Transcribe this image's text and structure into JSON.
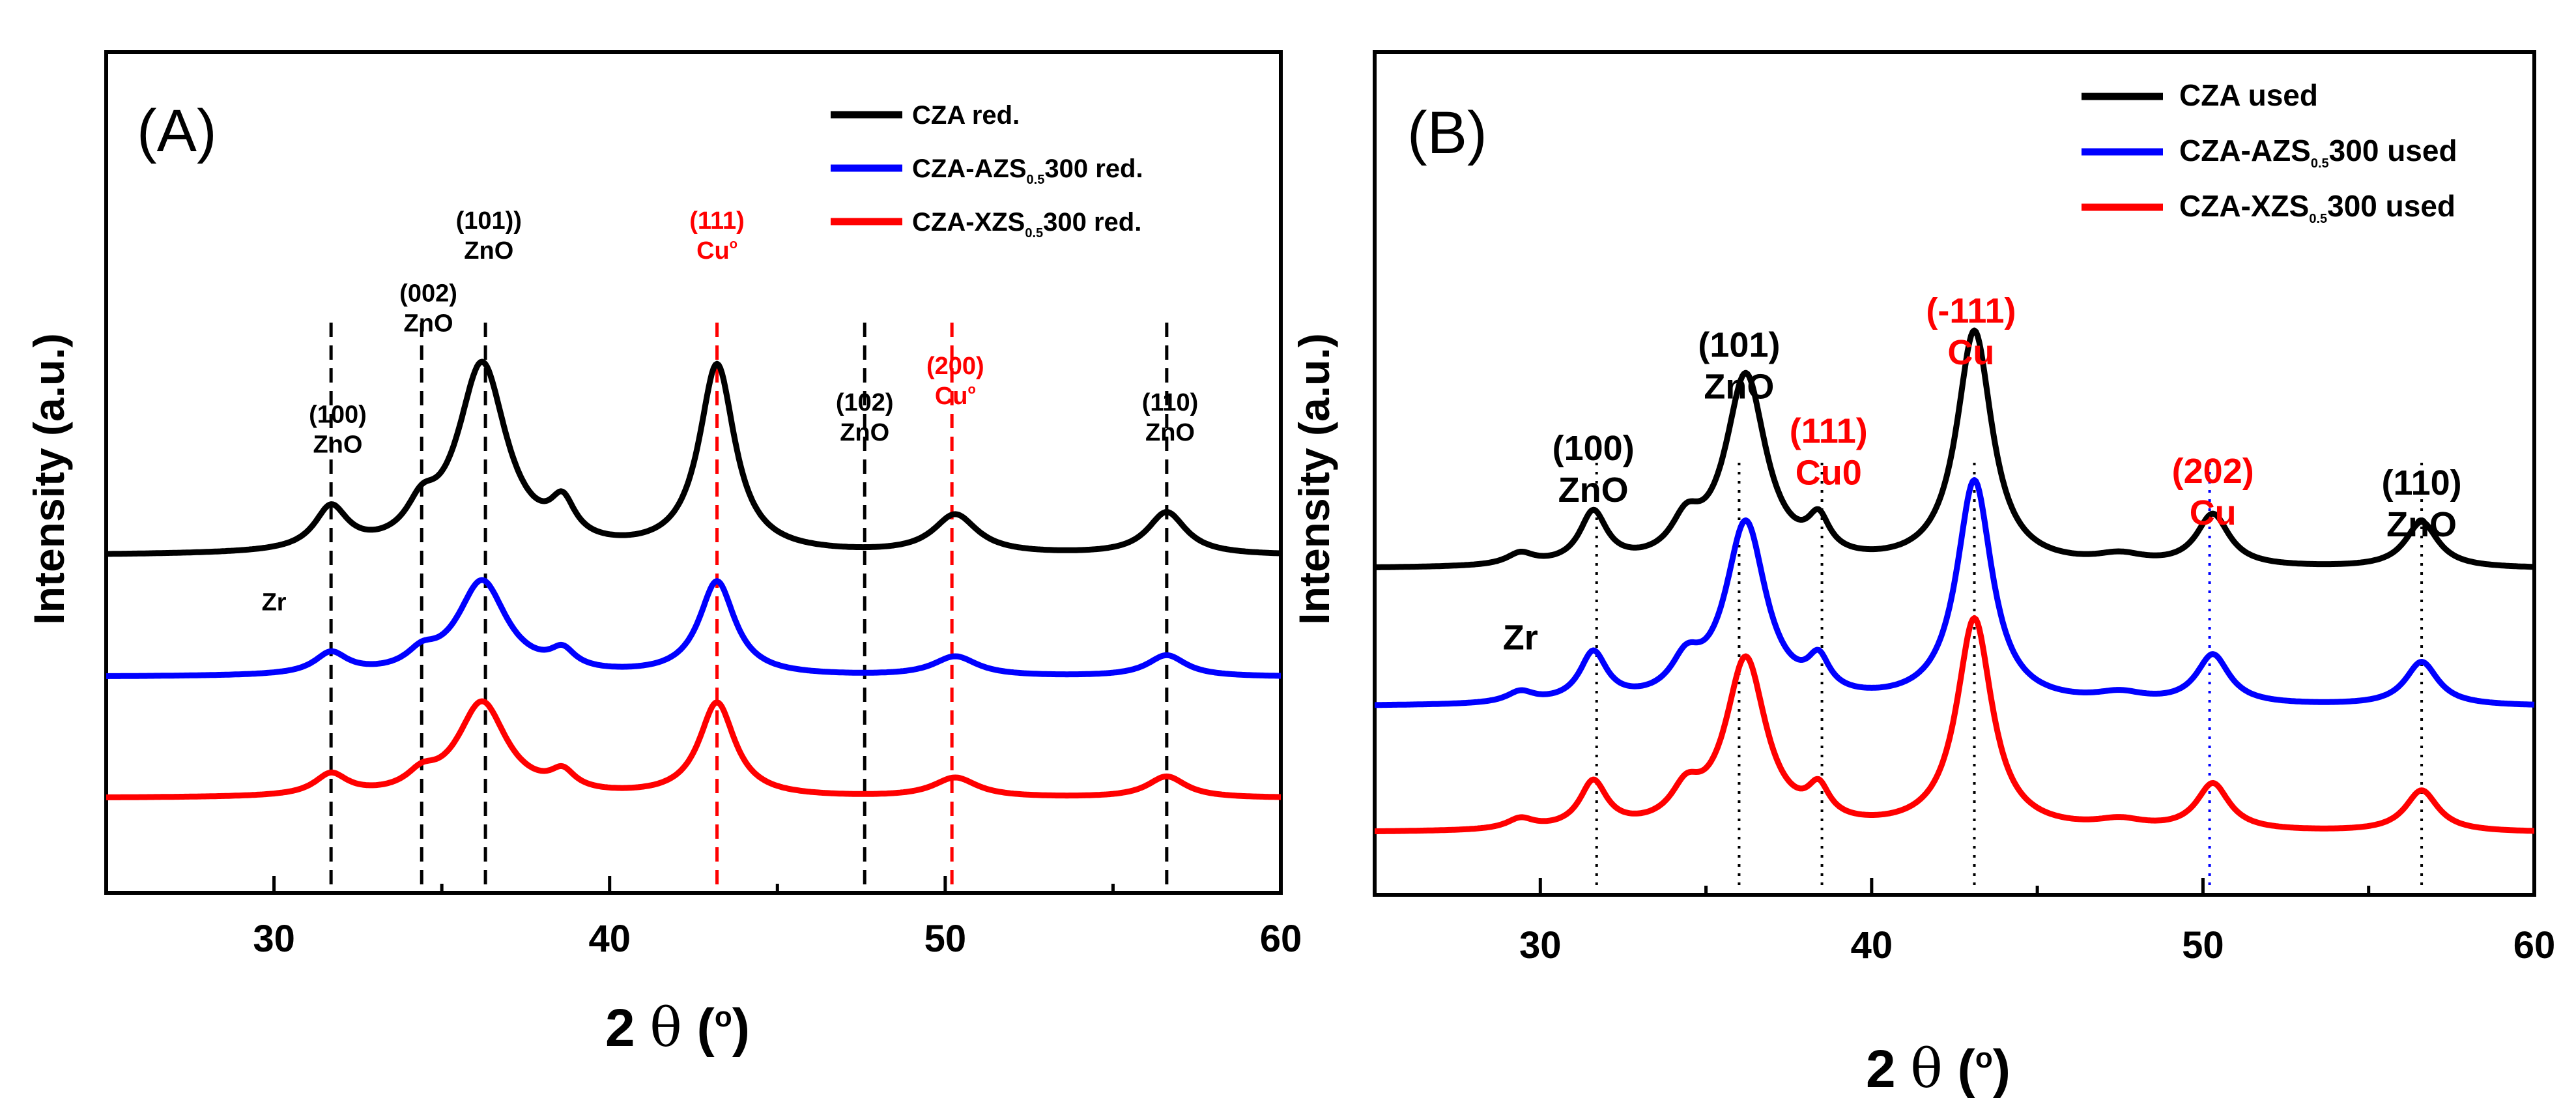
{
  "chart_data": [
    {
      "panel": "A",
      "type": "line",
      "panel_label": "(A)",
      "xlabel_prefix": "2 ",
      "xlabel_theta": "θ",
      "xlabel_open": " (",
      "xlabel_deg": "o",
      "xlabel_close": ")",
      "ylabel": "Intensity (a.u.)",
      "xlim": [
        25,
        60
      ],
      "xticks": [
        30,
        40,
        50,
        60
      ],
      "legend_position": "top-right",
      "series": [
        {
          "name": "CZA red.",
          "label_main": "CZA red.",
          "label_sub": "",
          "label_rest": "",
          "color": "#000000",
          "offset": 2.0,
          "peak_scale": 1.0
        },
        {
          "name": "CZA-AZS0.5300 red.",
          "label_main": "CZA-AZS",
          "label_sub": "0.5",
          "label_rest": "300 red.",
          "color": "#0000ff",
          "offset": 1.0,
          "peak_scale": 0.5
        },
        {
          "name": "CZA-XZS0.5300 red.",
          "label_main": "CZA-XZS",
          "label_sub": "0.5",
          "label_rest": "300 red.",
          "color": "#ff0000",
          "offset": 0.0,
          "peak_scale": 0.5
        }
      ],
      "peaks": [
        {
          "x": 31.7,
          "h": 0.35,
          "w": 0.6
        },
        {
          "x": 34.4,
          "h": 0.25,
          "w": 0.55
        },
        {
          "x": 36.2,
          "h": 1.55,
          "w": 0.9
        },
        {
          "x": 38.6,
          "h": 0.3,
          "w": 0.45
        },
        {
          "x": 43.2,
          "h": 1.55,
          "w": 0.65
        },
        {
          "x": 50.3,
          "h": 0.32,
          "w": 0.8
        },
        {
          "x": 56.6,
          "h": 0.35,
          "w": 0.7
        }
      ],
      "reference_lines": [
        {
          "x": 31.7,
          "color": "#000000"
        },
        {
          "x": 34.4,
          "color": "#000000"
        },
        {
          "x": 36.3,
          "color": "#000000"
        },
        {
          "x": 43.2,
          "color": "#ff0000"
        },
        {
          "x": 47.6,
          "color": "#000000"
        },
        {
          "x": 50.2,
          "color": "#ff0000"
        },
        {
          "x": 56.6,
          "color": "#000000"
        }
      ],
      "annotations": [
        {
          "x": 31.9,
          "line1": "(100)",
          "line2": "ZnO",
          "color": "#000000",
          "level": 3.1
        },
        {
          "x": 34.6,
          "line1": "(002)",
          "line2": "ZnO",
          "color": "#000000",
          "level": 4.1
        },
        {
          "x": 36.4,
          "line1": "(101))",
          "line2": "ZnO",
          "color": "#000000",
          "level": 4.7
        },
        {
          "x": 43.2,
          "line1": "(111)",
          "line2": "Cu",
          "line2_sup": "o",
          "color": "#ff0000",
          "level": 4.7
        },
        {
          "x": 47.6,
          "line1": "(102)",
          "line2": "ZnO",
          "color": "#000000",
          "level": 3.2
        },
        {
          "x": 50.3,
          "line1": "(200)",
          "line2": "Cu",
          "line2_sup": "o",
          "color": "#ff0000",
          "level": 3.5
        },
        {
          "x": 56.7,
          "line1": "(110)",
          "line2": "ZnO",
          "color": "#000000",
          "level": 3.2
        },
        {
          "x": 30.0,
          "line1": "Zr",
          "line2": "",
          "color": "#000000",
          "level": 1.55
        }
      ]
    },
    {
      "panel": "B",
      "type": "line",
      "panel_label": "(B)",
      "xlabel_prefix": "2 ",
      "xlabel_theta": "θ",
      "xlabel_open": " (",
      "xlabel_deg": "o",
      "xlabel_close": ")",
      "ylabel": "Intensity (a.u.)",
      "xlim": [
        25,
        60
      ],
      "xticks": [
        30,
        40,
        50,
        60
      ],
      "legend_position": "top-right",
      "series": [
        {
          "name": "CZA used",
          "label_main": "CZA used",
          "label_sub": "",
          "label_rest": "",
          "color": "#000000",
          "offset": 2.3,
          "peak_scale": 1.0
        },
        {
          "name": "CZA-AZS0.5300 used",
          "label_main": "CZA-AZS",
          "label_sub": "0.5",
          "label_rest": "300 used",
          "color": "#0000ff",
          "offset": 1.1,
          "peak_scale": 0.95
        },
        {
          "name": "CZA-XZS0.5300 used",
          "label_main": "CZA-XZS",
          "label_sub": "0.5",
          "label_rest": "300 used",
          "color": "#ff0000",
          "offset": 0.0,
          "peak_scale": 0.9
        }
      ],
      "peaks": [
        {
          "x": 29.4,
          "h": 0.1,
          "w": 0.5
        },
        {
          "x": 31.6,
          "h": 0.45,
          "w": 0.5
        },
        {
          "x": 34.4,
          "h": 0.3,
          "w": 0.55
        },
        {
          "x": 36.2,
          "h": 1.65,
          "w": 0.75
        },
        {
          "x": 38.4,
          "h": 0.3,
          "w": 0.4
        },
        {
          "x": 43.1,
          "h": 2.05,
          "w": 0.65
        },
        {
          "x": 47.5,
          "h": 0.08,
          "w": 0.9
        },
        {
          "x": 50.3,
          "h": 0.45,
          "w": 0.6
        },
        {
          "x": 56.6,
          "h": 0.4,
          "w": 0.6
        }
      ],
      "reference_lines": [
        {
          "x": 31.7,
          "color": "#000000"
        },
        {
          "x": 36.0,
          "color": "#000000"
        },
        {
          "x": 38.5,
          "color": "#000000"
        },
        {
          "x": 43.1,
          "color": "#000000"
        },
        {
          "x": 50.2,
          "color": "#0000ff"
        },
        {
          "x": 56.6,
          "color": "#000000"
        }
      ],
      "annotations": [
        {
          "x": 31.6,
          "line1": "(100)",
          "line2": "ZnO",
          "color": "#000000",
          "level": 3.25
        },
        {
          "x": 36.0,
          "line1": "(101)",
          "line2": "ZnO",
          "color": "#000000",
          "level": 4.15
        },
        {
          "x": 38.7,
          "line1": "(111)",
          "line2": "Cu0",
          "color": "#ff0000",
          "level": 3.4
        },
        {
          "x": 43.0,
          "line1": "(-111)",
          "line2": "Cu",
          "color": "#ff0000",
          "level": 4.45
        },
        {
          "x": 50.3,
          "line1": "(202)",
          "line2": "Cu",
          "color": "#ff0000",
          "level": 3.05
        },
        {
          "x": 56.6,
          "line1": "(110)",
          "line2": "ZnO",
          "color": "#000000",
          "level": 2.95
        },
        {
          "x": 29.4,
          "line1": "Zr",
          "line2": "",
          "color": "#000000",
          "level": 1.6
        }
      ]
    }
  ]
}
